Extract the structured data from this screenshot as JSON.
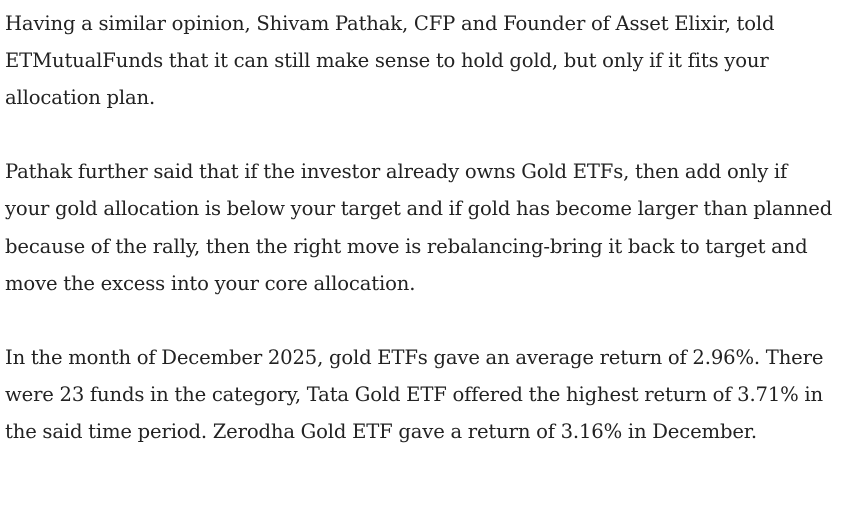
{
  "article": {
    "paragraphs": [
      "Having a similar opinion, Shivam Pathak, CFP and Founder of Asset Elixir, told ETMutualFunds that it can still make sense to hold gold, but only if it fits your allocation plan.",
      "Pathak further said that if the investor already owns Gold ETFs, then add only if your gold allocation is below your target and if gold has become larger than planned because of the rally, then the right move is rebalancing-bring it back to target and move the excess into your core allocation.",
      "In the month of December 2025, gold ETFs gave an average return of 2.96%. There were 23 funds in the category, Tata Gold ETF offered the highest return of 3.71% in the said time period. Zerodha Gold ETF gave a return of 3.16% in December."
    ]
  }
}
